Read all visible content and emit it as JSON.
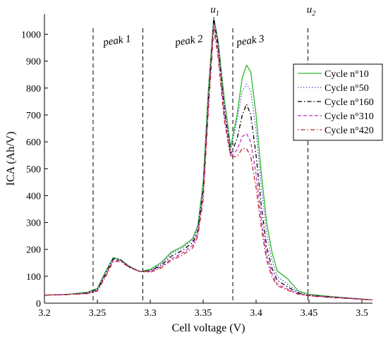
{
  "chart_data": {
    "type": "line",
    "xlabel": "Cell voltage (V)",
    "ylabel": "ICA (Ah/V)",
    "xlim": [
      3.2,
      3.51
    ],
    "ylim": [
      0,
      1075
    ],
    "xticks": [
      3.2,
      3.25,
      3.3,
      3.35,
      3.4,
      3.45,
      3.5
    ],
    "yticks": [
      0,
      100,
      200,
      300,
      400,
      500,
      600,
      700,
      800,
      900,
      1000
    ],
    "xtick_labels": [
      "3.2",
      "3.25",
      "3.3",
      "3.35",
      "3.4",
      "3.45",
      "3.5"
    ],
    "ytick_labels": [
      "0",
      "100",
      "200",
      "300",
      "400",
      "500",
      "600",
      "700",
      "800",
      "900",
      "1000"
    ],
    "grid": false,
    "legend_position": "top-right",
    "vlines": [
      3.246,
      3.293,
      3.378,
      3.449
    ],
    "region_labels": [
      {
        "text": "peak 1",
        "x": 3.269
      },
      {
        "text": "peak 2",
        "x": 3.337
      },
      {
        "text": "peak 3",
        "x": 3.395
      }
    ],
    "point_labels": [
      {
        "text": "u",
        "sub": "1",
        "x": 3.361
      },
      {
        "text": "u",
        "sub": "2",
        "x": 3.452
      }
    ],
    "series": [
      {
        "name": "Cycle n°10",
        "color": "#2db82d",
        "dash": "solid",
        "points": [
          [
            3.2,
            30
          ],
          [
            3.22,
            32
          ],
          [
            3.24,
            40
          ],
          [
            3.25,
            55
          ],
          [
            3.258,
            120
          ],
          [
            3.265,
            170
          ],
          [
            3.272,
            162
          ],
          [
            3.28,
            138
          ],
          [
            3.29,
            118
          ],
          [
            3.3,
            125
          ],
          [
            3.31,
            150
          ],
          [
            3.32,
            190
          ],
          [
            3.33,
            210
          ],
          [
            3.34,
            240
          ],
          [
            3.345,
            290
          ],
          [
            3.35,
            450
          ],
          [
            3.355,
            800
          ],
          [
            3.36,
            1060
          ],
          [
            3.364,
            980
          ],
          [
            3.37,
            760
          ],
          [
            3.376,
            580
          ],
          [
            3.382,
            700
          ],
          [
            3.387,
            840
          ],
          [
            3.391,
            885
          ],
          [
            3.395,
            860
          ],
          [
            3.4,
            700
          ],
          [
            3.405,
            480
          ],
          [
            3.41,
            300
          ],
          [
            3.415,
            190
          ],
          [
            3.42,
            120
          ],
          [
            3.43,
            90
          ],
          [
            3.44,
            45
          ],
          [
            3.45,
            33
          ],
          [
            3.47,
            25
          ],
          [
            3.51,
            12
          ]
        ]
      },
      {
        "name": "Cycle n°50",
        "color": "#5050c8",
        "dash": "dotted",
        "points": [
          [
            3.2,
            30
          ],
          [
            3.22,
            32
          ],
          [
            3.24,
            38
          ],
          [
            3.25,
            52
          ],
          [
            3.258,
            115
          ],
          [
            3.265,
            168
          ],
          [
            3.272,
            160
          ],
          [
            3.28,
            136
          ],
          [
            3.29,
            118
          ],
          [
            3.3,
            122
          ],
          [
            3.31,
            145
          ],
          [
            3.32,
            185
          ],
          [
            3.33,
            205
          ],
          [
            3.34,
            235
          ],
          [
            3.345,
            280
          ],
          [
            3.35,
            430
          ],
          [
            3.355,
            780
          ],
          [
            3.36,
            1050
          ],
          [
            3.364,
            970
          ],
          [
            3.37,
            740
          ],
          [
            3.376,
            570
          ],
          [
            3.382,
            680
          ],
          [
            3.387,
            790
          ],
          [
            3.391,
            815
          ],
          [
            3.395,
            790
          ],
          [
            3.4,
            640
          ],
          [
            3.405,
            430
          ],
          [
            3.41,
            260
          ],
          [
            3.415,
            160
          ],
          [
            3.42,
            100
          ],
          [
            3.43,
            70
          ],
          [
            3.44,
            40
          ],
          [
            3.45,
            30
          ],
          [
            3.47,
            24
          ],
          [
            3.51,
            12
          ]
        ]
      },
      {
        "name": "Cycle n°160",
        "color": "#000000",
        "dash": "dashdot",
        "points": [
          [
            3.2,
            30
          ],
          [
            3.22,
            32
          ],
          [
            3.24,
            38
          ],
          [
            3.25,
            50
          ],
          [
            3.258,
            110
          ],
          [
            3.265,
            165
          ],
          [
            3.272,
            160
          ],
          [
            3.28,
            135
          ],
          [
            3.29,
            118
          ],
          [
            3.3,
            120
          ],
          [
            3.31,
            140
          ],
          [
            3.32,
            175
          ],
          [
            3.33,
            195
          ],
          [
            3.34,
            225
          ],
          [
            3.345,
            270
          ],
          [
            3.35,
            420
          ],
          [
            3.355,
            760
          ],
          [
            3.36,
            1062
          ],
          [
            3.364,
            960
          ],
          [
            3.37,
            720
          ],
          [
            3.376,
            555
          ],
          [
            3.382,
            610
          ],
          [
            3.387,
            700
          ],
          [
            3.391,
            740
          ],
          [
            3.395,
            700
          ],
          [
            3.4,
            550
          ],
          [
            3.405,
            360
          ],
          [
            3.41,
            210
          ],
          [
            3.415,
            130
          ],
          [
            3.42,
            85
          ],
          [
            3.43,
            60
          ],
          [
            3.44,
            38
          ],
          [
            3.45,
            29
          ],
          [
            3.47,
            23
          ],
          [
            3.51,
            12
          ]
        ]
      },
      {
        "name": "Cycle n°310",
        "color": "#c030c0",
        "dash": "dashed",
        "points": [
          [
            3.2,
            30
          ],
          [
            3.22,
            32
          ],
          [
            3.24,
            36
          ],
          [
            3.25,
            48
          ],
          [
            3.258,
            105
          ],
          [
            3.265,
            160
          ],
          [
            3.272,
            158
          ],
          [
            3.28,
            135
          ],
          [
            3.29,
            118
          ],
          [
            3.3,
            118
          ],
          [
            3.31,
            135
          ],
          [
            3.32,
            165
          ],
          [
            3.33,
            185
          ],
          [
            3.34,
            215
          ],
          [
            3.345,
            260
          ],
          [
            3.35,
            400
          ],
          [
            3.355,
            740
          ],
          [
            3.36,
            1040
          ],
          [
            3.364,
            940
          ],
          [
            3.37,
            700
          ],
          [
            3.376,
            545
          ],
          [
            3.382,
            570
          ],
          [
            3.387,
            620
          ],
          [
            3.391,
            630
          ],
          [
            3.395,
            600
          ],
          [
            3.4,
            480
          ],
          [
            3.405,
            310
          ],
          [
            3.41,
            180
          ],
          [
            3.415,
            110
          ],
          [
            3.42,
            72
          ],
          [
            3.43,
            52
          ],
          [
            3.44,
            35
          ],
          [
            3.45,
            28
          ],
          [
            3.47,
            22
          ],
          [
            3.51,
            12
          ]
        ]
      },
      {
        "name": "Cycle n°420",
        "color": "#c02020",
        "dash": "dotdash",
        "points": [
          [
            3.2,
            30
          ],
          [
            3.22,
            32
          ],
          [
            3.24,
            35
          ],
          [
            3.25,
            45
          ],
          [
            3.258,
            100
          ],
          [
            3.265,
            155
          ],
          [
            3.272,
            155
          ],
          [
            3.28,
            133
          ],
          [
            3.29,
            118
          ],
          [
            3.3,
            115
          ],
          [
            3.31,
            130
          ],
          [
            3.32,
            160
          ],
          [
            3.33,
            178
          ],
          [
            3.34,
            205
          ],
          [
            3.345,
            250
          ],
          [
            3.35,
            385
          ],
          [
            3.355,
            720
          ],
          [
            3.36,
            1020
          ],
          [
            3.364,
            920
          ],
          [
            3.37,
            680
          ],
          [
            3.376,
            545
          ],
          [
            3.382,
            545
          ],
          [
            3.387,
            575
          ],
          [
            3.391,
            575
          ],
          [
            3.395,
            545
          ],
          [
            3.4,
            430
          ],
          [
            3.405,
            280
          ],
          [
            3.41,
            160
          ],
          [
            3.415,
            98
          ],
          [
            3.42,
            65
          ],
          [
            3.43,
            48
          ],
          [
            3.44,
            33
          ],
          [
            3.45,
            27
          ],
          [
            3.47,
            21
          ],
          [
            3.51,
            12
          ]
        ]
      }
    ]
  }
}
